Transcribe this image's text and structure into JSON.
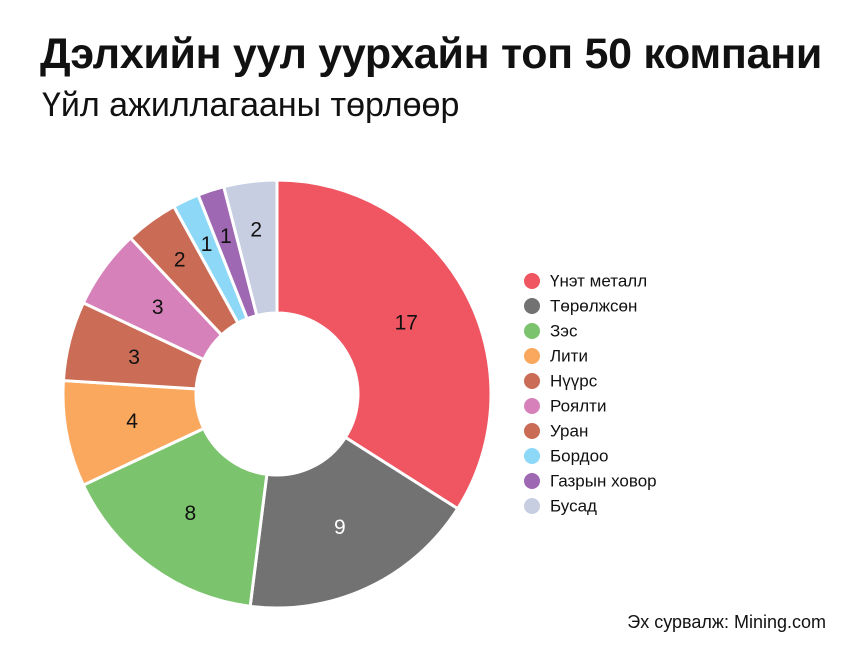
{
  "header": {
    "title": "Дэлхийн уул уурхайн топ 50 компани",
    "subtitle": "Үйл ажиллагааны төрлөөр"
  },
  "source": "Эх сурвалж: Mining.com",
  "chart_data": {
    "type": "pie",
    "variant": "donut",
    "categories": [
      "Үнэт металл",
      "Төрөлжсөн",
      "Зэс",
      "Лити",
      "Нүүрс",
      "Роялти",
      "Уран",
      "Бордоо",
      "Газрын ховор",
      "Бусад"
    ],
    "values": [
      17,
      9,
      8,
      4,
      3,
      3,
      2,
      1,
      1,
      2
    ],
    "colors": [
      "#ef5662",
      "#727272",
      "#7bc46d",
      "#fba85f",
      "#cb6c57",
      "#d681b9",
      "#ca6b55",
      "#8ed8f7",
      "#9e68b2",
      "#c7cee2"
    ],
    "label_colors": [
      "#111111",
      "#ffffff",
      "#111111",
      "#111111",
      "#111111",
      "#111111",
      "#111111",
      "#111111",
      "#111111",
      "#111111"
    ],
    "legend_position": "right"
  }
}
